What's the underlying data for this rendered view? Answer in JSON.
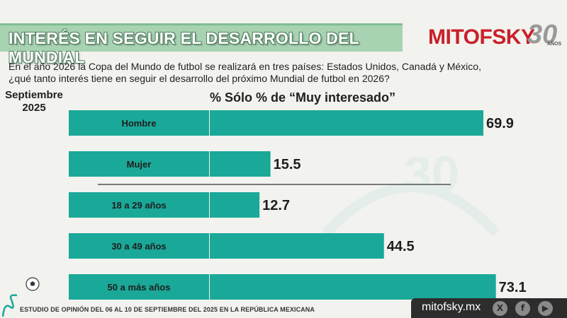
{
  "header": {
    "title": "INTERÉS EN SEGUIR EL DESARROLLO DEL MUNDIAL"
  },
  "brand": {
    "name": "MITOFSKY",
    "anniversary_number": "30",
    "anniversary_label": "AÑOS"
  },
  "question": {
    "line1": "En el año 2026 la Copa del Mundo de futbol se realizará en tres países: Estados Unidos, Canadá y México,",
    "line2": "¿qué tanto interés tiene en seguir el desarrollo del próximo Mundial de futbol en 2026?"
  },
  "date": {
    "line1": "Septiembre",
    "line2": "2025"
  },
  "chart_data": {
    "type": "bar",
    "orientation": "horizontal",
    "title": "% Sólo % de “Muy interesado”",
    "categories": [
      "Hombre",
      "Mujer",
      "18 a 29 años",
      "30 a 49 años",
      "50 a más años"
    ],
    "values": [
      69.9,
      15.5,
      12.7,
      44.5,
      73.1
    ],
    "value_labels": [
      "69.9",
      "15.5",
      "12.7",
      "44.5",
      "73.1"
    ],
    "xlim": [
      0,
      80
    ],
    "grid": false,
    "bar_color": "#1aa898",
    "label_box_color": "#1aa898",
    "separator_after_index": 1
  },
  "footer": {
    "study_text": "ESTUDIO DE OPINIÓN DEL 06 AL 10 DE SEPTIEMBRE DEL 2025 EN LA REPÚBLICA MEXICANA",
    "website": "mitofsky.mx",
    "social_icons": [
      "x-icon",
      "facebook-icon",
      "youtube-icon"
    ]
  },
  "colors": {
    "banner": "#a8d3b3",
    "brand_red": "#c8202a",
    "footer_bar": "#2d2d2d",
    "teal": "#1aa898"
  }
}
